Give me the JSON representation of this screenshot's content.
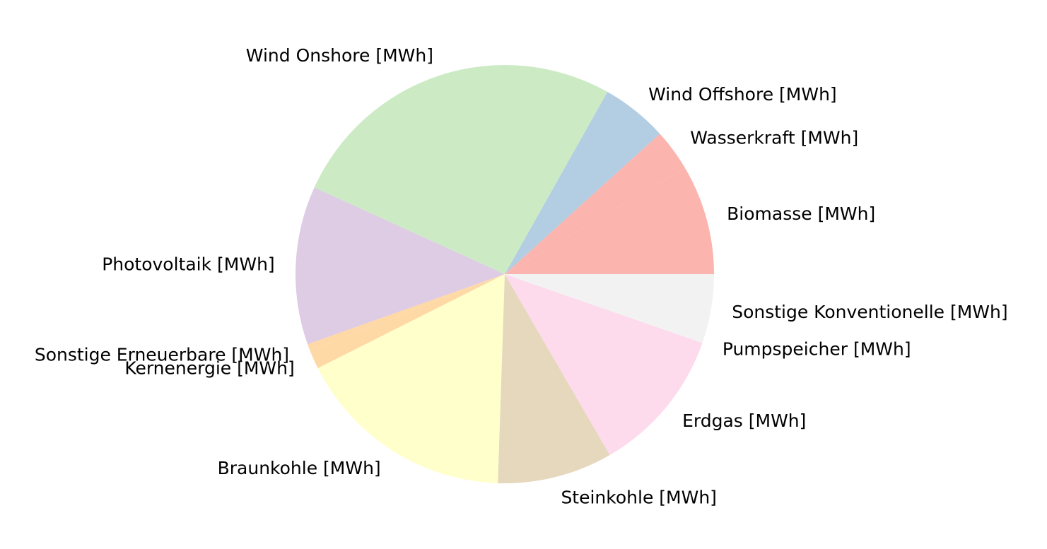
{
  "chart_data": {
    "type": "pie",
    "title": "",
    "start_angle_deg": 0,
    "direction": "counterclockwise",
    "labels": [
      "Biomasse [MWh]",
      "Wasserkraft [MWh]",
      "Wind Offshore [MWh]",
      "Wind Onshore [MWh]",
      "Photovoltaik [MWh]",
      "Sonstige Erneuerbare [MWh]",
      "Kernenergie [MWh]",
      "Braunkohle [MWh]",
      "Steinkohle [MWh]",
      "Erdgas [MWh]",
      "Pumpspeicher [MWh]",
      "Sonstige Konventionelle [MWh]"
    ],
    "values": [
      8.1,
      3.1,
      4.9,
      25.2,
      11.7,
      0.5,
      1.4,
      16.3,
      8.5,
      10.8,
      0.1,
      5.0
    ],
    "colors": [
      "#fbb4ae",
      "#fbb4ae",
      "#b3cde3",
      "#ccebc5",
      "#decbe4",
      "#fed9a6",
      "#fed9a6",
      "#ffffcc",
      "#e5d8bd",
      "#fddaec",
      "#f2f2f2",
      "#f2f2f2"
    ]
  }
}
